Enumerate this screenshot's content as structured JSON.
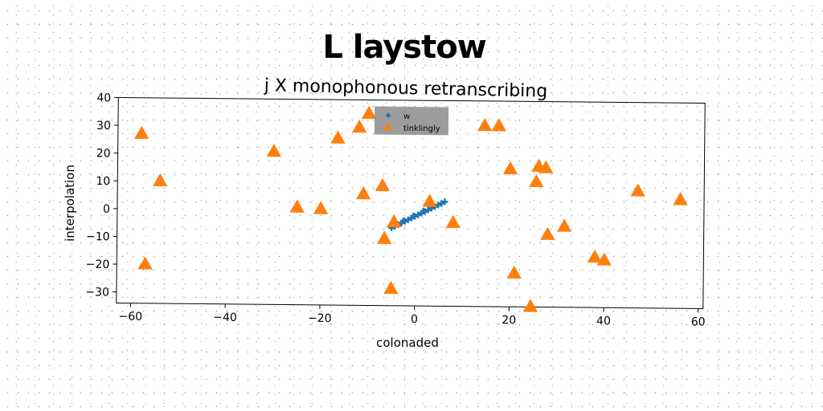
{
  "chart_data": {
    "type": "scatter",
    "title": "L laystow",
    "subtitle": "j X monophonous retranscribing",
    "xlabel": "colonaded",
    "ylabel": "interpolation",
    "xlim": [
      -63,
      61
    ],
    "ylim": [
      -34,
      40
    ],
    "xticks": [
      -60,
      -40,
      -20,
      0,
      20,
      40,
      60
    ],
    "yticks": [
      -30,
      -20,
      -10,
      0,
      10,
      20,
      30,
      40
    ],
    "grid": false,
    "legend_position": "top-center",
    "series": [
      {
        "name": "w",
        "marker": "plus",
        "color": "#1f77b4",
        "points": [
          [
            -5,
            -6
          ],
          [
            -4.3,
            -5.4
          ],
          [
            -3.6,
            -4.8
          ],
          [
            -2.9,
            -4.2
          ],
          [
            -2.2,
            -3.6
          ],
          [
            -1.5,
            -3
          ],
          [
            -0.8,
            -2.4
          ],
          [
            -0.1,
            -1.8
          ],
          [
            0.6,
            -1.2
          ],
          [
            1.3,
            -0.6
          ],
          [
            2,
            0
          ],
          [
            2.7,
            0.6
          ],
          [
            3.4,
            1.2
          ],
          [
            4.1,
            1.8
          ],
          [
            4.8,
            2.4
          ],
          [
            5.5,
            3
          ],
          [
            6.2,
            3.6
          ],
          [
            -4.6,
            -5.2
          ],
          [
            -2.5,
            -3.4
          ],
          [
            -0.4,
            -1.6
          ],
          [
            1.7,
            0.2
          ],
          [
            3.8,
            2
          ]
        ]
      },
      {
        "name": "tinklingly",
        "marker": "triangle",
        "color": "#ff7f0e",
        "points": [
          [
            -58,
            27
          ],
          [
            -54,
            10
          ],
          [
            -57,
            -20
          ],
          [
            -30,
            21
          ],
          [
            -25,
            1
          ],
          [
            -20,
            0.5
          ],
          [
            -16.5,
            26
          ],
          [
            -12,
            30
          ],
          [
            -11,
            6
          ],
          [
            -10,
            35
          ],
          [
            -7,
            9
          ],
          [
            -6.5,
            -10
          ],
          [
            -5,
            -28
          ],
          [
            -4.5,
            -4
          ],
          [
            3,
            3.5
          ],
          [
            8,
            -4
          ],
          [
            14.5,
            31
          ],
          [
            17.5,
            31
          ],
          [
            20,
            15.5
          ],
          [
            21,
            -22
          ],
          [
            24.5,
            -34
          ],
          [
            25.5,
            11
          ],
          [
            26,
            16.5
          ],
          [
            27.5,
            16
          ],
          [
            28,
            -8
          ],
          [
            31.5,
            -5
          ],
          [
            38,
            -16
          ],
          [
            40,
            -17
          ],
          [
            47,
            8
          ],
          [
            56,
            5
          ]
        ]
      }
    ]
  }
}
